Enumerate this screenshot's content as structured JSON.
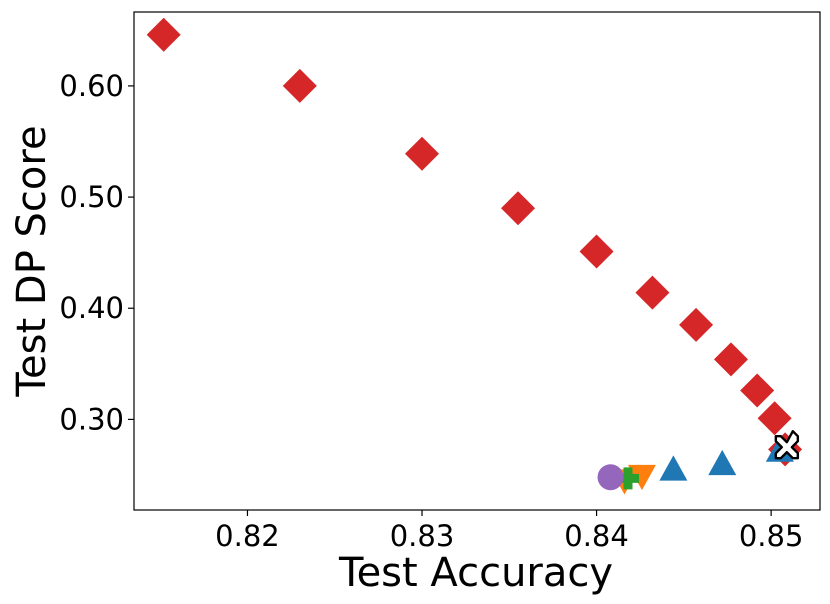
{
  "chart_data": {
    "type": "scatter",
    "xlabel": "Test Accuracy",
    "ylabel": "Test DP Score",
    "xlim": [
      0.8135,
      0.8528
    ],
    "ylim": [
      0.2185,
      0.6665
    ],
    "x_ticks": [
      {
        "value": 0.82,
        "label": "0.82"
      },
      {
        "value": 0.83,
        "label": "0.83"
      },
      {
        "value": 0.84,
        "label": "0.84"
      },
      {
        "value": 0.85,
        "label": "0.85"
      }
    ],
    "y_ticks": [
      {
        "value": 0.3,
        "label": "0.30"
      },
      {
        "value": 0.4,
        "label": "0.40"
      },
      {
        "value": 0.5,
        "label": "0.50"
      },
      {
        "value": 0.6,
        "label": "0.60"
      }
    ],
    "grid": false,
    "series": [
      {
        "marker": "diamond",
        "color": "#d62728",
        "points": [
          {
            "x": 0.8152,
            "y": 0.646
          },
          {
            "x": 0.823,
            "y": 0.6
          },
          {
            "x": 0.83,
            "y": 0.539
          },
          {
            "x": 0.8355,
            "y": 0.49
          },
          {
            "x": 0.84,
            "y": 0.451
          },
          {
            "x": 0.8432,
            "y": 0.414
          },
          {
            "x": 0.8457,
            "y": 0.385
          },
          {
            "x": 0.8477,
            "y": 0.354
          },
          {
            "x": 0.8492,
            "y": 0.326
          },
          {
            "x": 0.8502,
            "y": 0.301
          },
          {
            "x": 0.8508,
            "y": 0.273
          }
        ]
      },
      {
        "marker": "triangle-up",
        "color": "#1f77b4",
        "points": [
          {
            "x": 0.8444,
            "y": 0.255
          },
          {
            "x": 0.8472,
            "y": 0.26
          },
          {
            "x": 0.8505,
            "y": 0.272
          }
        ]
      },
      {
        "marker": "triangle-down",
        "color": "#ff7f0e",
        "points": [
          {
            "x": 0.8416,
            "y": 0.245
          },
          {
            "x": 0.8426,
            "y": 0.249
          }
        ]
      },
      {
        "marker": "plus",
        "color": "#2ca02c",
        "points": [
          {
            "x": 0.8418,
            "y": 0.247
          }
        ]
      },
      {
        "marker": "circle",
        "color": "#9467bd",
        "points": [
          {
            "x": 0.8408,
            "y": 0.248
          }
        ]
      },
      {
        "marker": "x-filled",
        "color": "#ffffff",
        "edge_color": "#000000",
        "points": [
          {
            "x": 0.8509,
            "y": 0.275
          }
        ]
      }
    ]
  }
}
